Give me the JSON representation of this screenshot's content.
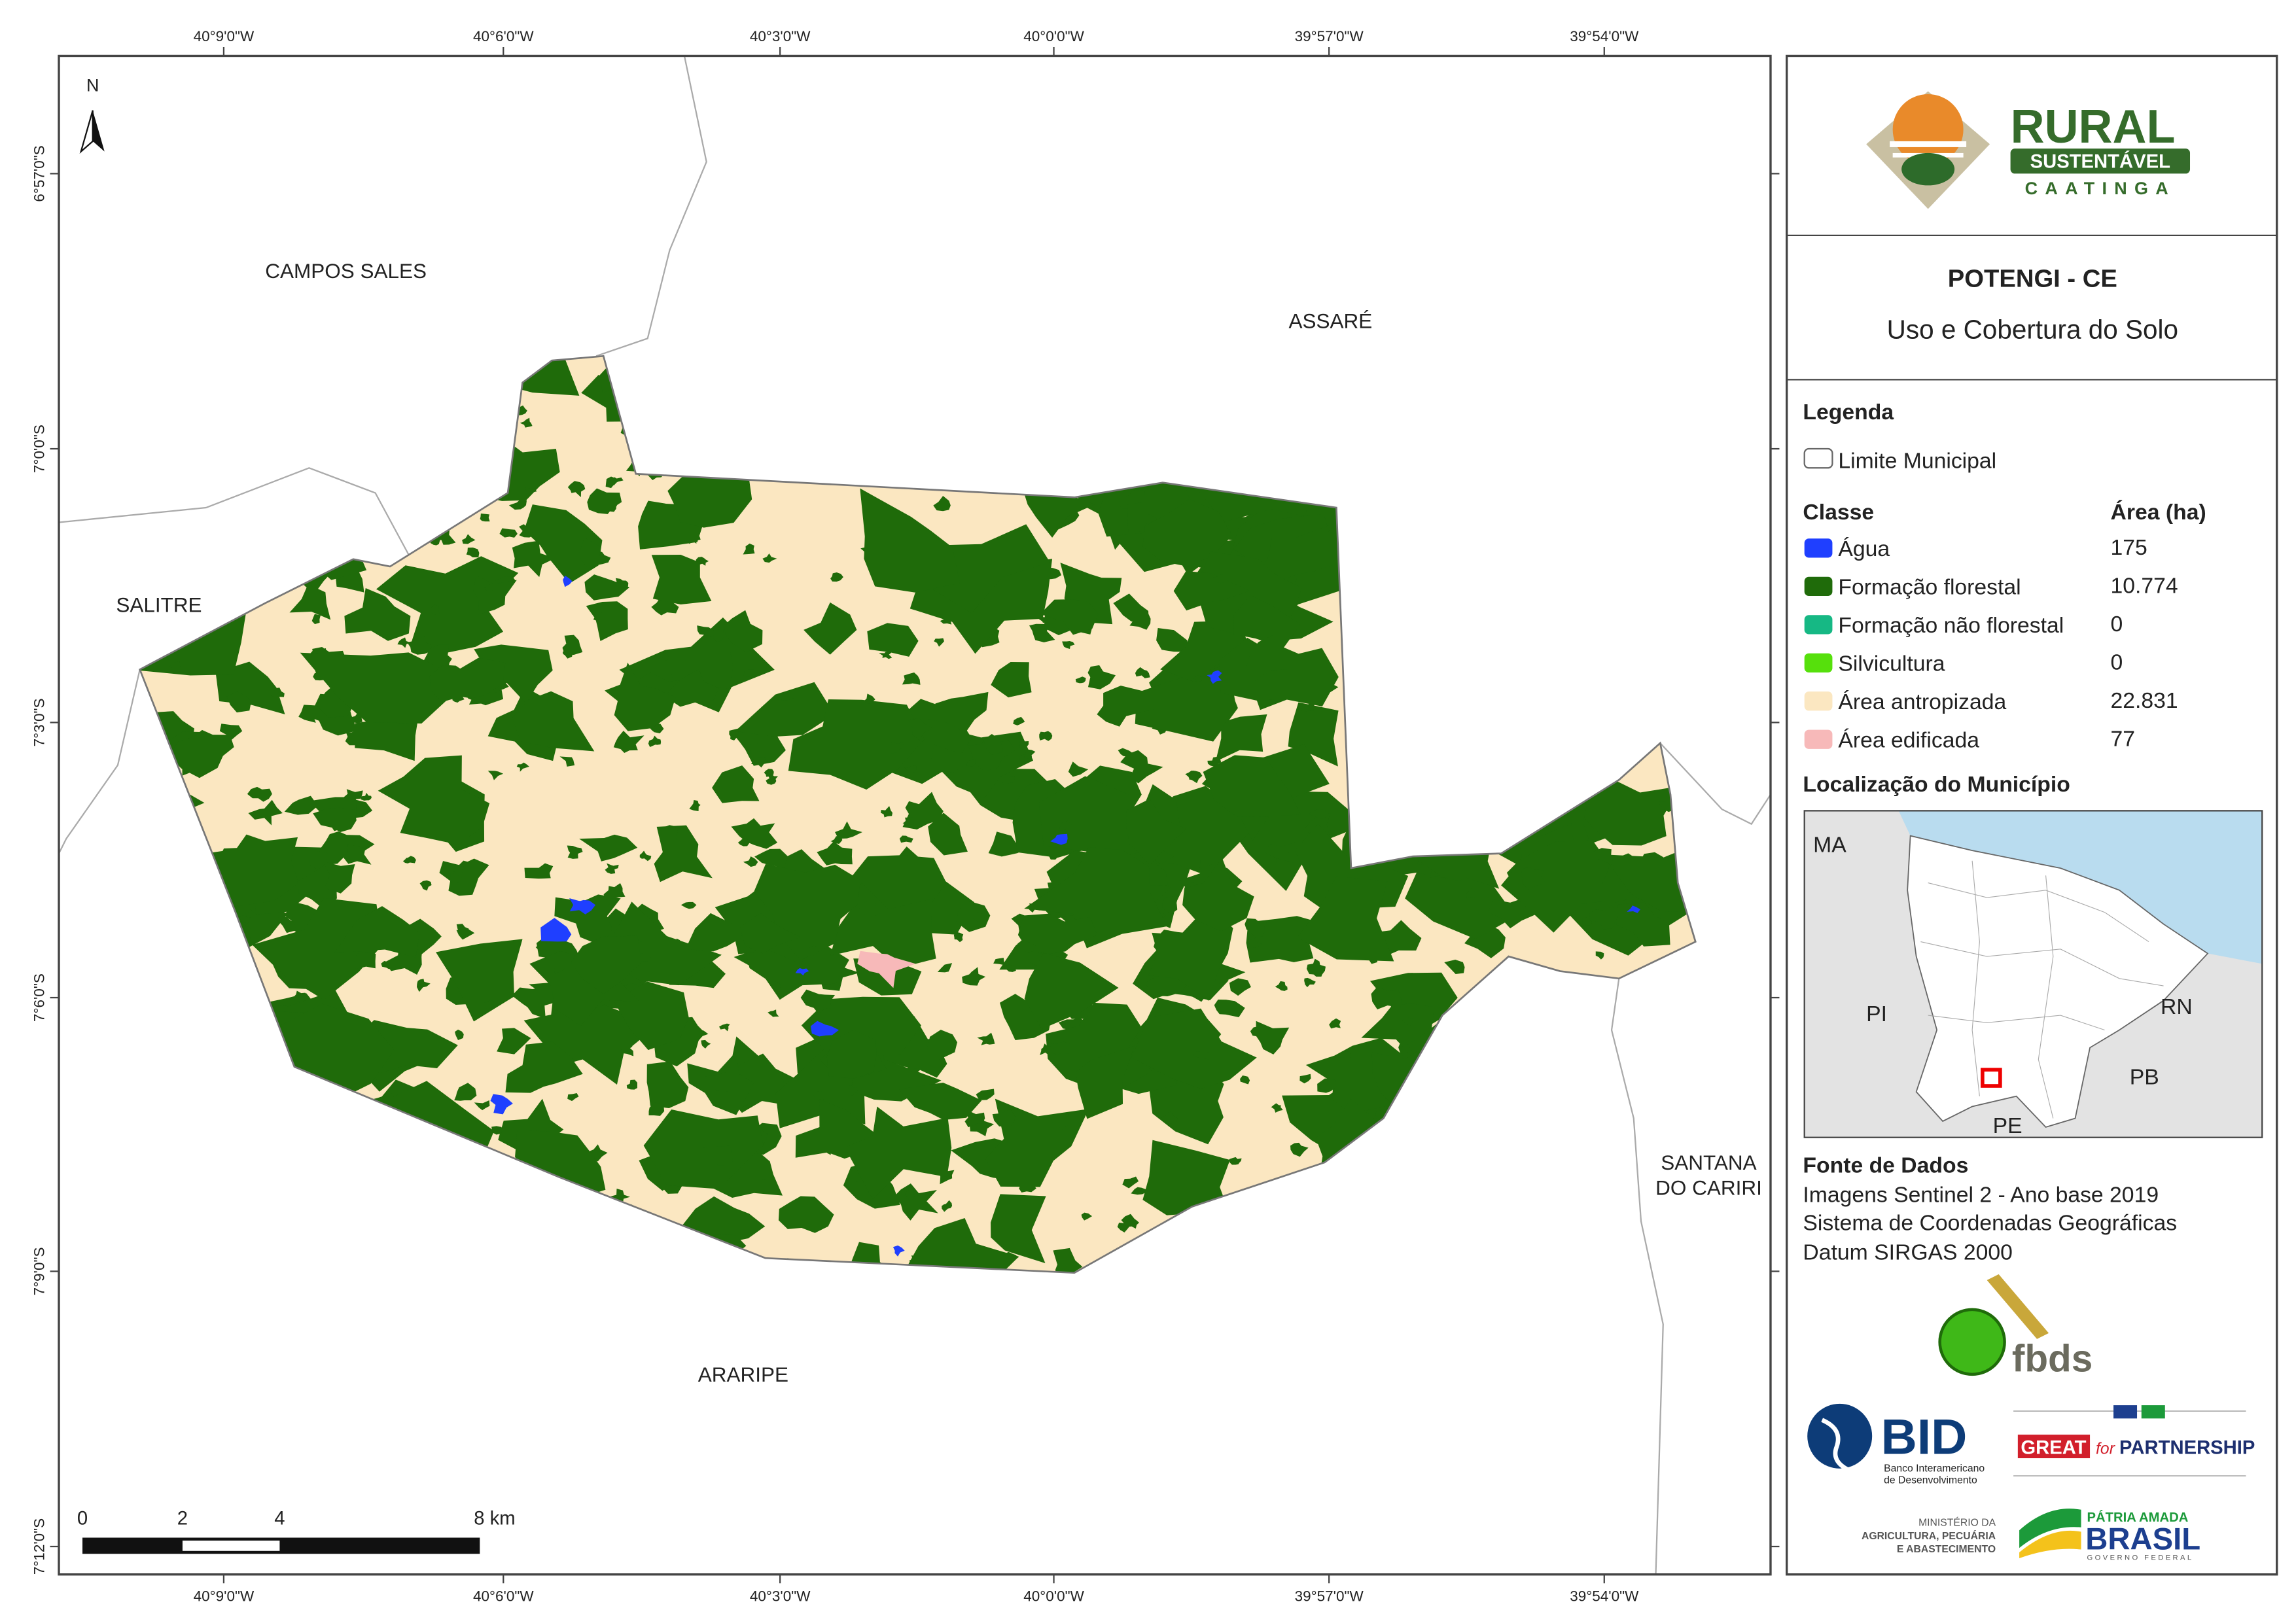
{
  "map": {
    "top_labels": [
      "40°9'0\"W",
      "40°6'0\"W",
      "40°3'0\"W",
      "40°0'0\"W",
      "39°57'0\"W",
      "39°54'0\"W"
    ],
    "bottom_labels": [
      "40°9'0\"W",
      "40°6'0\"W",
      "40°3'0\"W",
      "40°0'0\"W",
      "39°57'0\"W",
      "39°54'0\"W"
    ],
    "left_labels": [
      "6°57'0\"S",
      "7°0'0\"S",
      "7°3'0\"S",
      "7°6'0\"S",
      "7°9'0\"S",
      "7°12'0\"S"
    ],
    "north": "N",
    "places": [
      "CAMPOS SALES",
      "ASSARÉ",
      "SALITRE",
      "SANTANA",
      "DO CARIRI",
      "ARARIPE"
    ],
    "scale": [
      "0",
      "2",
      "4",
      "8 km"
    ]
  },
  "panel": {
    "logo": [
      "RURAL",
      "SUSTENTÁVEL",
      "CAATINGA"
    ],
    "title": "POTENGI - CE",
    "subtitle": "Uso e Cobertura do Solo",
    "legend": {
      "title": "Legenda",
      "boundary": "Limite Municipal",
      "class_header": "Classe",
      "area_header": "Área (ha)",
      "classes": [
        {
          "name": "Água",
          "color": "#1f3fff",
          "area": "175"
        },
        {
          "name": "Formação florestal",
          "color": "#1f6b0a",
          "area": "10.774"
        },
        {
          "name": "Formação não florestal",
          "color": "#16b884",
          "area": "0"
        },
        {
          "name": "Silvicultura",
          "color": "#56e00c",
          "area": "0"
        },
        {
          "name": "Área antropizada",
          "color": "#fbe7c1",
          "area": "22.831"
        },
        {
          "name": "Área edificada",
          "color": "#f7b9b9",
          "area": "77"
        }
      ]
    },
    "location": {
      "title": "Localização do Município",
      "labels": [
        "MA",
        "PI",
        "RN",
        "PB",
        "PE"
      ]
    },
    "sources": {
      "title": "Fonte de Dados",
      "lines": [
        "Imagens Sentinel 2 - Ano base 2019",
        "Sistema de Coordenadas Geográficas",
        "Datum SIRGAS 2000"
      ]
    },
    "partners": {
      "fbds": "fbds",
      "bid": "BID",
      "bid_lines": [
        "Banco Interamericano",
        "de Desenvolvimento"
      ],
      "great": "GREAT",
      "for": "for",
      "partnership": "PARTNERSHIP",
      "ministry": [
        "MINISTÉRIO DA",
        "AGRICULTURA, PECUÁRIA",
        "E ABASTECIMENTO"
      ],
      "brasil": [
        "PÁTRIA AMADA",
        "BRASIL",
        "GOVERNO FEDERAL"
      ]
    }
  }
}
